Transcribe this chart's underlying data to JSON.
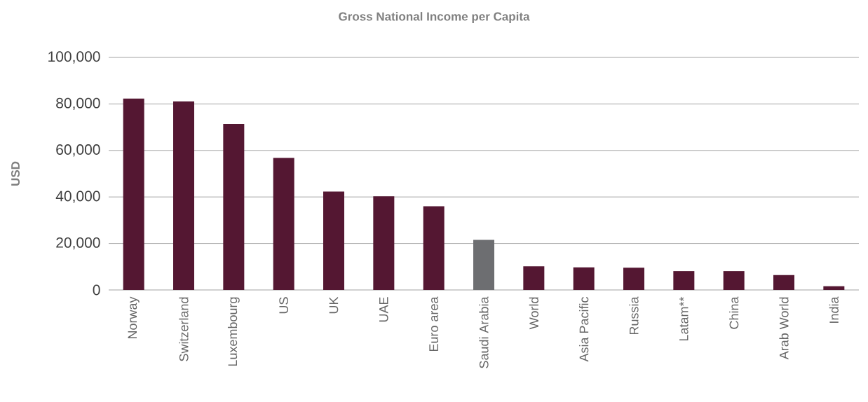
{
  "chart_data": {
    "type": "bar",
    "title": "Gross National Income per Capita",
    "ylabel": "USD",
    "categories": [
      "Norway",
      "Switzerland",
      "Luxembourg",
      "US",
      "UK",
      "UAE",
      "Euro area",
      "Saudi Arabia",
      "World",
      "Asia Pacific",
      "Russia",
      "Latam**",
      "China",
      "Arab World",
      "India"
    ],
    "values": [
      82300,
      81100,
      71400,
      56800,
      42300,
      40300,
      36000,
      21500,
      10200,
      9700,
      9600,
      8100,
      8100,
      6400,
      1600
    ],
    "colors": [
      "#541732",
      "#541732",
      "#541732",
      "#541732",
      "#541732",
      "#541732",
      "#541732",
      "#6d6e71",
      "#541732",
      "#541732",
      "#541732",
      "#541732",
      "#541732",
      "#541732",
      "#541732"
    ],
    "ylim": [
      0,
      100000
    ],
    "yticks": [
      {
        "value": 0,
        "label": "0"
      },
      {
        "value": 20000,
        "label": "20,000"
      },
      {
        "value": 40000,
        "label": "40,000"
      },
      {
        "value": 60000,
        "label": "60,000"
      },
      {
        "value": 80000,
        "label": "80,000"
      },
      {
        "value": 100000,
        "label": "100,000"
      }
    ],
    "grid": "y"
  }
}
